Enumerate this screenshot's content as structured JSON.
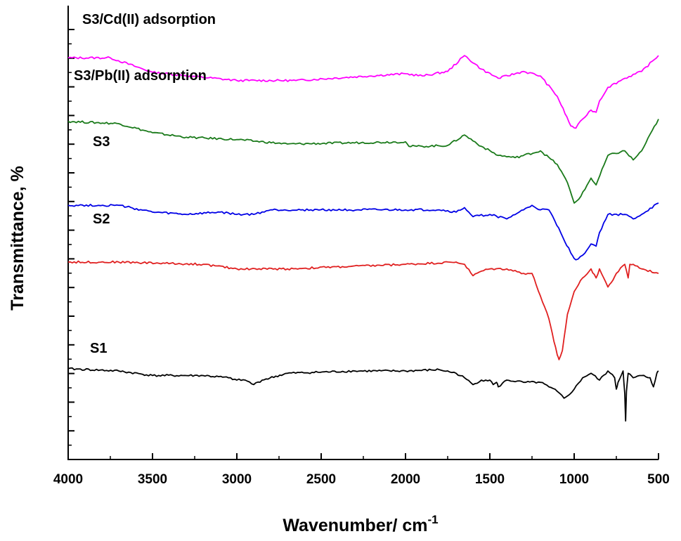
{
  "chart_data": {
    "type": "line",
    "xlabel": "Wavenumber/ cm",
    "xlabel_superscript": "-1",
    "ylabel": "Transmittance, %",
    "xlim": [
      4000,
      500
    ],
    "x_reversed": true,
    "x_ticks": [
      4000,
      3500,
      3000,
      2500,
      2000,
      1500,
      1000,
      500
    ],
    "y_tick_labels_shown": false,
    "series": [
      {
        "name": "S3/Cd(II) adsorption",
        "color": "#ff00ff",
        "points": [
          [
            4000,
            88.5
          ],
          [
            3750,
            88.5
          ],
          [
            3500,
            85.3
          ],
          [
            3000,
            83.5
          ],
          [
            2650,
            83.5
          ],
          [
            2000,
            85
          ],
          [
            1900,
            84.5
          ],
          [
            1750,
            85.5
          ],
          [
            1650,
            89
          ],
          [
            1550,
            86
          ],
          [
            1450,
            84
          ],
          [
            1300,
            85.5
          ],
          [
            1200,
            84.5
          ],
          [
            1100,
            80
          ],
          [
            1020,
            73.5
          ],
          [
            990,
            73
          ],
          [
            950,
            75
          ],
          [
            900,
            77
          ],
          [
            870,
            76.5
          ],
          [
            850,
            79
          ],
          [
            800,
            82
          ],
          [
            700,
            84
          ],
          [
            600,
            85.5
          ],
          [
            500,
            89
          ]
        ]
      },
      {
        "name": "S3/Pb(II) adsorption",
        "color": "#1a7a1a",
        "points": [
          [
            4000,
            74.5
          ],
          [
            3700,
            74
          ],
          [
            3500,
            72
          ],
          [
            3300,
            71
          ],
          [
            3000,
            70.5
          ],
          [
            2700,
            69.5
          ],
          [
            2000,
            70
          ],
          [
            1980,
            69
          ],
          [
            1900,
            69
          ],
          [
            1750,
            69.2
          ],
          [
            1650,
            71.5
          ],
          [
            1550,
            69
          ],
          [
            1450,
            67
          ],
          [
            1350,
            66.5
          ],
          [
            1200,
            68
          ],
          [
            1100,
            65
          ],
          [
            1040,
            61
          ],
          [
            1000,
            56.5
          ],
          [
            960,
            58
          ],
          [
            900,
            62
          ],
          [
            870,
            60.5
          ],
          [
            800,
            67
          ],
          [
            700,
            68
          ],
          [
            650,
            66
          ],
          [
            600,
            68
          ],
          [
            500,
            75
          ]
        ]
      },
      {
        "name": "S3",
        "color": "#0000e6",
        "points": [
          [
            4000,
            56
          ],
          [
            3700,
            56
          ],
          [
            3500,
            54.5
          ],
          [
            3300,
            54
          ],
          [
            3100,
            54.5
          ],
          [
            3000,
            54
          ],
          [
            2900,
            54
          ],
          [
            2800,
            55
          ],
          [
            2000,
            55
          ],
          [
            1800,
            55
          ],
          [
            1700,
            54.5
          ],
          [
            1650,
            55.5
          ],
          [
            1600,
            53.5
          ],
          [
            1500,
            54
          ],
          [
            1400,
            53
          ],
          [
            1300,
            55
          ],
          [
            1250,
            56
          ],
          [
            1200,
            55
          ],
          [
            1150,
            55
          ],
          [
            1080,
            50
          ],
          [
            1020,
            45.5
          ],
          [
            990,
            44
          ],
          [
            950,
            45
          ],
          [
            900,
            47.5
          ],
          [
            870,
            47
          ],
          [
            850,
            50
          ],
          [
            800,
            54
          ],
          [
            700,
            54
          ],
          [
            650,
            53
          ],
          [
            600,
            54
          ],
          [
            500,
            56.5
          ]
        ]
      },
      {
        "name": "S2",
        "color": "#e02020",
        "points": [
          [
            4000,
            43.5
          ],
          [
            3700,
            43.5
          ],
          [
            3200,
            43
          ],
          [
            3000,
            42
          ],
          [
            2700,
            42
          ],
          [
            2000,
            43
          ],
          [
            1700,
            43.5
          ],
          [
            1650,
            43
          ],
          [
            1600,
            40.5
          ],
          [
            1550,
            41.5
          ],
          [
            1500,
            42
          ],
          [
            1400,
            42
          ],
          [
            1300,
            41
          ],
          [
            1250,
            41
          ],
          [
            1200,
            36
          ],
          [
            1150,
            31
          ],
          [
            1120,
            26
          ],
          [
            1100,
            23
          ],
          [
            1090,
            22
          ],
          [
            1070,
            24
          ],
          [
            1040,
            32
          ],
          [
            1000,
            37
          ],
          [
            950,
            40
          ],
          [
            900,
            42
          ],
          [
            870,
            40
          ],
          [
            850,
            42
          ],
          [
            800,
            38
          ],
          [
            780,
            39
          ],
          [
            750,
            41
          ],
          [
            700,
            43
          ],
          [
            680,
            40
          ],
          [
            670,
            43
          ],
          [
            650,
            43
          ],
          [
            600,
            42
          ],
          [
            500,
            41
          ]
        ]
      },
      {
        "name": "S1",
        "color": "#000000",
        "points": [
          [
            4000,
            20
          ],
          [
            3700,
            19.5
          ],
          [
            3500,
            18.5
          ],
          [
            3200,
            18.5
          ],
          [
            3050,
            18
          ],
          [
            3000,
            17.5
          ],
          [
            2950,
            17.5
          ],
          [
            2900,
            16.5
          ],
          [
            2850,
            17.5
          ],
          [
            2700,
            19
          ],
          [
            2300,
            19.5
          ],
          [
            2000,
            19.5
          ],
          [
            1800,
            19.8
          ],
          [
            1700,
            19
          ],
          [
            1650,
            18
          ],
          [
            1600,
            16.5
          ],
          [
            1550,
            17.5
          ],
          [
            1500,
            17.5
          ],
          [
            1480,
            16.5
          ],
          [
            1460,
            17
          ],
          [
            1450,
            16
          ],
          [
            1400,
            17.5
          ],
          [
            1300,
            17
          ],
          [
            1200,
            17
          ],
          [
            1150,
            16
          ],
          [
            1100,
            15
          ],
          [
            1060,
            13.5
          ],
          [
            1040,
            14
          ],
          [
            1000,
            15.5
          ],
          [
            950,
            18
          ],
          [
            900,
            19
          ],
          [
            850,
            17.5
          ],
          [
            800,
            19.5
          ],
          [
            760,
            18
          ],
          [
            750,
            15.5
          ],
          [
            740,
            17
          ],
          [
            710,
            19.5
          ],
          [
            700,
            14.5
          ],
          [
            695,
            8.5
          ],
          [
            690,
            15
          ],
          [
            680,
            19
          ],
          [
            650,
            18
          ],
          [
            600,
            18.5
          ],
          [
            550,
            18
          ],
          [
            530,
            16
          ],
          [
            510,
            19
          ],
          [
            500,
            19.5
          ]
        ]
      }
    ]
  }
}
